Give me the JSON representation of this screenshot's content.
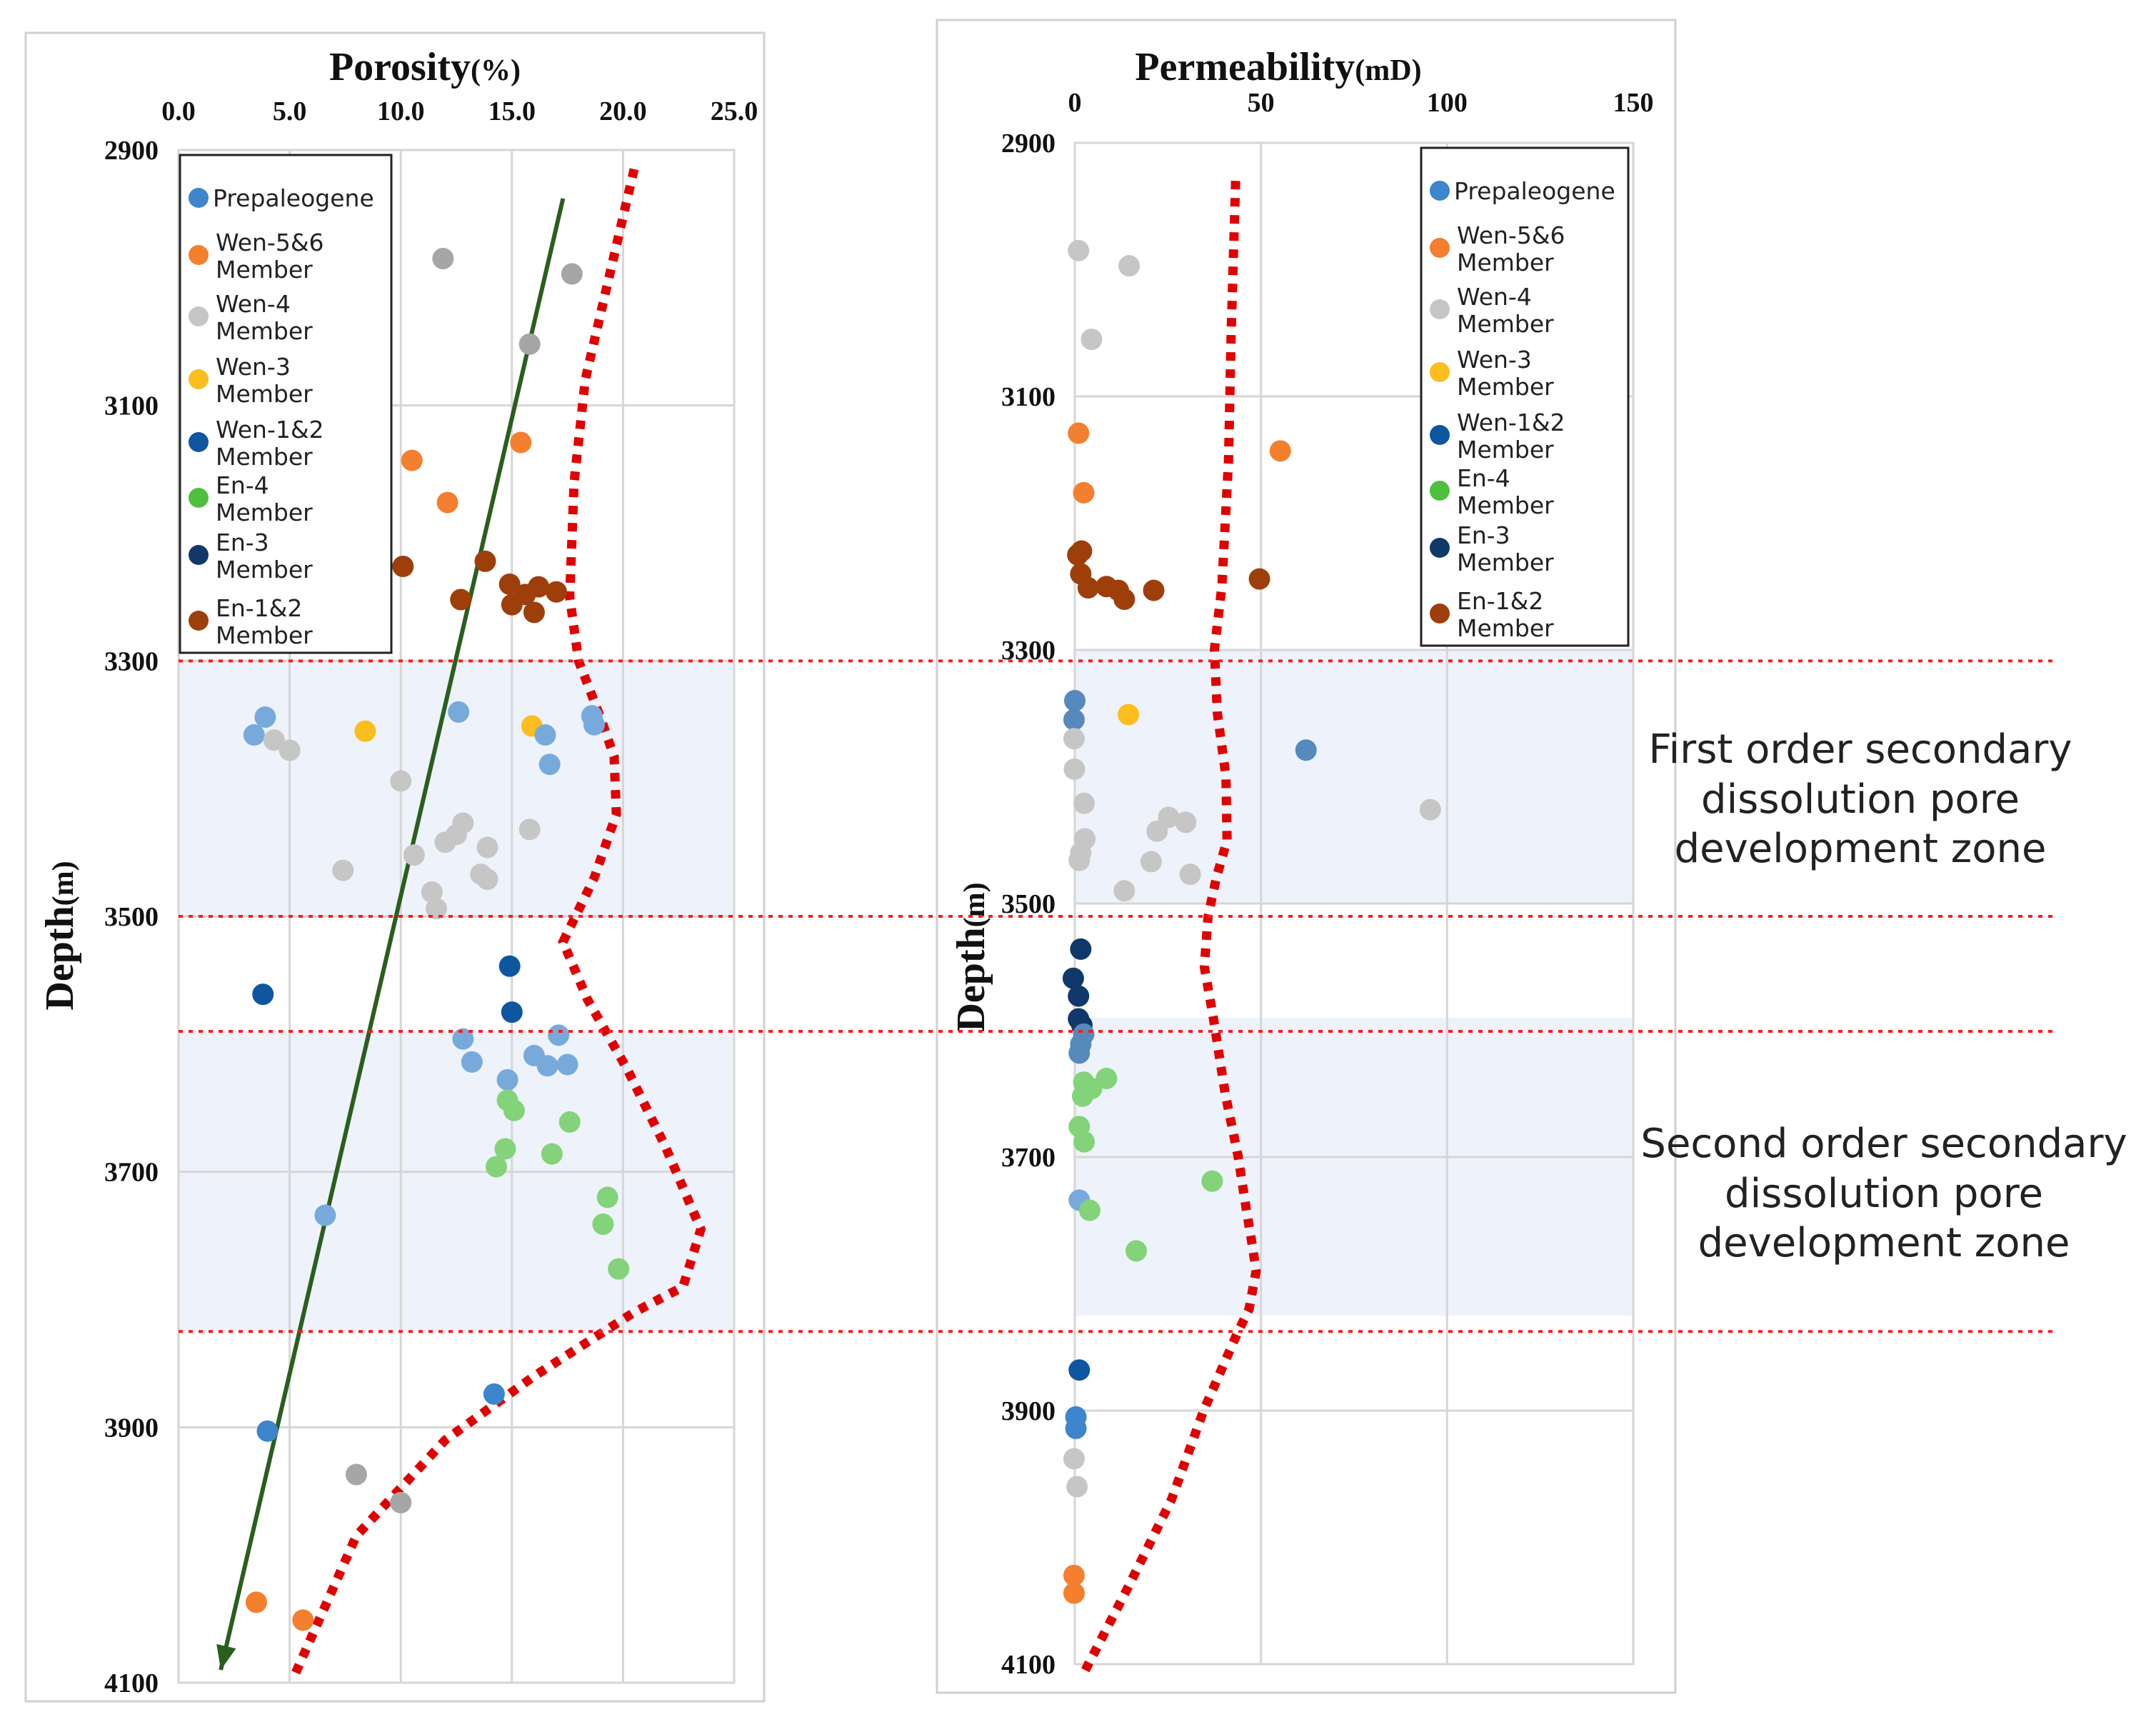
{
  "colors": {
    "Prepaleogene": "#3d85cc",
    "Wen-5&6 Member": "#f37f2f",
    "Wen-4 Member": "#c6c6c6",
    "Wen-3 Member": "#fcbd1f",
    "Wen-1&2 Member": "#0f56a1",
    "En-4 Member": "#4fbf3f",
    "En-3 Member": "#10386a",
    "En-1&2 Member": "#9e3f0b",
    "trend_dotted": "#e00000",
    "trend_arrow": "#2a5e1e",
    "zone_line": "#ff1a1a",
    "zone_fill": "#dde6f6"
  },
  "zones": {
    "first": {
      "top_depth": 3300,
      "bottom_depth": 3500,
      "lines": [
        "First order secondary",
        "dissolution pore",
        "development zone"
      ]
    },
    "second": {
      "top_depth": 3590,
      "bottom_depth": 3825,
      "lines": [
        "Second order secondary",
        "dissolution pore",
        "development zone"
      ]
    }
  },
  "chart_data": [
    {
      "type": "scatter",
      "title": "Porosity",
      "title_unit": "(%)",
      "xlabel": "Porosity (%)",
      "ylabel_main": "Depth",
      "ylabel_unit": "(m)",
      "xlim": [
        0,
        25
      ],
      "xticks": [
        "0.0",
        "5.0",
        "10.0",
        "15.0",
        "20.0",
        "25.0"
      ],
      "xtick_values": [
        0,
        5,
        10,
        15,
        20,
        25
      ],
      "ylim": [
        2900,
        4100
      ],
      "yticks": [
        "2900",
        "3100",
        "3300",
        "3500",
        "3700",
        "3900",
        "4100"
      ],
      "ytick_values": [
        2900,
        3100,
        3300,
        3500,
        3700,
        3900,
        4100
      ],
      "legend": [
        "Prepaleogene",
        "Wen-5&6 Member",
        "Wen-4 Member",
        "Wen-3 Member",
        "Wen-1&2 Member",
        "En-4 Member",
        "En-3 Member",
        "En-1&2 Member"
      ],
      "points": [
        {
          "x": 11.9,
          "y": 2985,
          "g": "Wen-4 Member",
          "dark": true
        },
        {
          "x": 17.7,
          "y": 2997,
          "g": "Wen-4 Member",
          "dark": true
        },
        {
          "x": 15.8,
          "y": 3052,
          "g": "Wen-4 Member",
          "dark": true
        },
        {
          "x": 10.5,
          "y": 3143,
          "g": "Wen-5&6 Member"
        },
        {
          "x": 15.4,
          "y": 3129,
          "g": "Wen-5&6 Member"
        },
        {
          "x": 12.1,
          "y": 3176,
          "g": "Wen-5&6 Member"
        },
        {
          "x": 10.1,
          "y": 3226,
          "g": "En-1&2 Member"
        },
        {
          "x": 13.8,
          "y": 3222,
          "g": "En-1&2 Member"
        },
        {
          "x": 12.7,
          "y": 3252,
          "g": "En-1&2 Member"
        },
        {
          "x": 14.9,
          "y": 3240,
          "g": "En-1&2 Member"
        },
        {
          "x": 15.6,
          "y": 3248,
          "g": "En-1&2 Member"
        },
        {
          "x": 16.2,
          "y": 3242,
          "g": "En-1&2 Member"
        },
        {
          "x": 17.0,
          "y": 3246,
          "g": "En-1&2 Member"
        },
        {
          "x": 15.0,
          "y": 3256,
          "g": "En-1&2 Member"
        },
        {
          "x": 16.0,
          "y": 3262,
          "g": "En-1&2 Member"
        },
        {
          "x": 3.9,
          "y": 3344,
          "g": "Prepaleogene",
          "muted": true
        },
        {
          "x": 3.4,
          "y": 3358,
          "g": "Prepaleogene",
          "muted": true
        },
        {
          "x": 4.3,
          "y": 3362,
          "g": "Wen-4 Member"
        },
        {
          "x": 5.0,
          "y": 3370,
          "g": "Wen-4 Member"
        },
        {
          "x": 8.4,
          "y": 3355,
          "g": "Wen-3 Member"
        },
        {
          "x": 12.6,
          "y": 3340,
          "g": "Prepaleogene",
          "muted": true
        },
        {
          "x": 15.9,
          "y": 3351,
          "g": "Wen-3 Member"
        },
        {
          "x": 16.5,
          "y": 3358,
          "g": "Prepaleogene",
          "muted": true
        },
        {
          "x": 18.6,
          "y": 3343,
          "g": "Prepaleogene",
          "muted": true
        },
        {
          "x": 18.7,
          "y": 3350,
          "g": "Prepaleogene",
          "muted": true
        },
        {
          "x": 16.7,
          "y": 3381,
          "g": "Prepaleogene",
          "muted": true
        },
        {
          "x": 10.0,
          "y": 3394,
          "g": "Wen-4 Member"
        },
        {
          "x": 12.8,
          "y": 3427,
          "g": "Wen-4 Member"
        },
        {
          "x": 12.5,
          "y": 3436,
          "g": "Wen-4 Member"
        },
        {
          "x": 12.0,
          "y": 3442,
          "g": "Wen-4 Member"
        },
        {
          "x": 15.8,
          "y": 3432,
          "g": "Wen-4 Member"
        },
        {
          "x": 13.9,
          "y": 3446,
          "g": "Wen-4 Member"
        },
        {
          "x": 10.6,
          "y": 3452,
          "g": "Wen-4 Member"
        },
        {
          "x": 7.4,
          "y": 3464,
          "g": "Wen-4 Member"
        },
        {
          "x": 13.6,
          "y": 3467,
          "g": "Wen-4 Member"
        },
        {
          "x": 13.9,
          "y": 3471,
          "g": "Wen-4 Member"
        },
        {
          "x": 11.4,
          "y": 3481,
          "g": "Wen-4 Member"
        },
        {
          "x": 11.6,
          "y": 3494,
          "g": "Wen-4 Member"
        },
        {
          "x": 3.8,
          "y": 3561,
          "g": "Wen-1&2 Member"
        },
        {
          "x": 14.9,
          "y": 3539,
          "g": "Wen-1&2 Member"
        },
        {
          "x": 15.0,
          "y": 3575,
          "g": "Wen-1&2 Member"
        },
        {
          "x": 12.8,
          "y": 3596,
          "g": "Prepaleogene",
          "muted": true
        },
        {
          "x": 17.1,
          "y": 3593,
          "g": "Prepaleogene",
          "muted": true
        },
        {
          "x": 13.2,
          "y": 3614,
          "g": "Prepaleogene",
          "muted": true
        },
        {
          "x": 16.0,
          "y": 3609,
          "g": "Prepaleogene",
          "muted": true
        },
        {
          "x": 16.6,
          "y": 3617,
          "g": "Prepaleogene",
          "muted": true
        },
        {
          "x": 17.5,
          "y": 3616,
          "g": "Prepaleogene",
          "muted": true
        },
        {
          "x": 14.8,
          "y": 3628,
          "g": "Prepaleogene",
          "muted": true
        },
        {
          "x": 14.8,
          "y": 3644,
          "g": "En-4 Member",
          "muted": true
        },
        {
          "x": 15.1,
          "y": 3652,
          "g": "En-4 Member",
          "muted": true
        },
        {
          "x": 17.6,
          "y": 3661,
          "g": "En-4 Member",
          "muted": true
        },
        {
          "x": 14.7,
          "y": 3682,
          "g": "En-4 Member",
          "muted": true
        },
        {
          "x": 16.8,
          "y": 3686,
          "g": "En-4 Member",
          "muted": true
        },
        {
          "x": 14.3,
          "y": 3696,
          "g": "En-4 Member",
          "muted": true
        },
        {
          "x": 19.3,
          "y": 3720,
          "g": "En-4 Member",
          "muted": true
        },
        {
          "x": 6.6,
          "y": 3734,
          "g": "Prepaleogene",
          "muted": true
        },
        {
          "x": 19.1,
          "y": 3741,
          "g": "En-4 Member",
          "muted": true
        },
        {
          "x": 19.8,
          "y": 3776,
          "g": "En-4 Member",
          "muted": true
        },
        {
          "x": 14.2,
          "y": 3874,
          "g": "Prepaleogene"
        },
        {
          "x": 4.0,
          "y": 3903,
          "g": "Prepaleogene"
        },
        {
          "x": 8.0,
          "y": 3937,
          "g": "Wen-4 Member",
          "dark": true
        },
        {
          "x": 10.0,
          "y": 3959,
          "g": "Wen-4 Member",
          "dark": true
        },
        {
          "x": 3.5,
          "y": 4037,
          "g": "Wen-5&6 Member"
        },
        {
          "x": 5.6,
          "y": 4051,
          "g": "Wen-5&6 Member"
        }
      ],
      "trend_dotted": [
        [
          20.5,
          2915
        ],
        [
          19.5,
          2990
        ],
        [
          18.3,
          3080
        ],
        [
          17.8,
          3160
        ],
        [
          17.6,
          3250
        ],
        [
          18.0,
          3300
        ],
        [
          19.0,
          3345
        ],
        [
          19.6,
          3375
        ],
        [
          19.7,
          3420
        ],
        [
          18.7,
          3470
        ],
        [
          17.3,
          3520
        ],
        [
          18.4,
          3565
        ],
        [
          20.2,
          3620
        ],
        [
          21.9,
          3680
        ],
        [
          23.5,
          3745
        ],
        [
          22.7,
          3790
        ],
        [
          20.5,
          3810
        ],
        [
          16.0,
          3860
        ],
        [
          12.0,
          3910
        ],
        [
          8.0,
          3985
        ],
        [
          5.2,
          4095
        ]
      ],
      "trend_arrow": [
        [
          17.3,
          2938
        ],
        [
          1.9,
          4090
        ]
      ]
    },
    {
      "type": "scatter",
      "title": "Permeability",
      "title_unit": "(mD)",
      "xlabel": "Permeability (mD)",
      "ylabel_main": "Depth",
      "ylabel_unit": "(m)",
      "xlim": [
        0,
        150
      ],
      "xticks": [
        "0",
        "50",
        "100",
        "150"
      ],
      "xtick_values": [
        0,
        50,
        100,
        150
      ],
      "ylim": [
        2900,
        4100
      ],
      "yticks": [
        "2900",
        "3100",
        "3300",
        "3500",
        "3700",
        "3900",
        "4100"
      ],
      "ytick_values": [
        2900,
        3100,
        3300,
        3500,
        3700,
        3900,
        4100
      ],
      "legend": [
        "Prepaleogene",
        "Wen-5&6 Member",
        "Wen-4 Member",
        "Wen-3 Member",
        "Wen-1&2 Member",
        "En-4 Member",
        "En-3 Member",
        "En-1&2 Member"
      ],
      "points": [
        {
          "x": 1.0,
          "y": 2985,
          "g": "Wen-4 Member"
        },
        {
          "x": 14.6,
          "y": 2997,
          "g": "Wen-4 Member"
        },
        {
          "x": 4.5,
          "y": 3055,
          "g": "Wen-4 Member"
        },
        {
          "x": 1.0,
          "y": 3129,
          "g": "Wen-5&6 Member"
        },
        {
          "x": 55.2,
          "y": 3143,
          "g": "Wen-5&6 Member"
        },
        {
          "x": 2.4,
          "y": 3176,
          "g": "Wen-5&6 Member"
        },
        {
          "x": 0.8,
          "y": 3225,
          "g": "En-1&2 Member"
        },
        {
          "x": 1.8,
          "y": 3222,
          "g": "En-1&2 Member"
        },
        {
          "x": 1.6,
          "y": 3240,
          "g": "En-1&2 Member"
        },
        {
          "x": 3.6,
          "y": 3251,
          "g": "En-1&2 Member"
        },
        {
          "x": 8.5,
          "y": 3250,
          "g": "En-1&2 Member"
        },
        {
          "x": 11.7,
          "y": 3253,
          "g": "En-1&2 Member"
        },
        {
          "x": 13.3,
          "y": 3260,
          "g": "En-1&2 Member"
        },
        {
          "x": 21.2,
          "y": 3253,
          "g": "En-1&2 Member"
        },
        {
          "x": 49.6,
          "y": 3244,
          "g": "En-1&2 Member"
        },
        {
          "x": 0.0,
          "y": 3340,
          "g": "Wen-1&2 Member",
          "muted": true
        },
        {
          "x": -0.2,
          "y": 3355,
          "g": "Wen-1&2 Member",
          "muted": true
        },
        {
          "x": 14.4,
          "y": 3351,
          "g": "Wen-3 Member"
        },
        {
          "x": -0.2,
          "y": 3370,
          "g": "Wen-4 Member"
        },
        {
          "x": 62.1,
          "y": 3379,
          "g": "Wen-1&2 Member",
          "muted": true
        },
        {
          "x": -0.1,
          "y": 3394,
          "g": "Wen-4 Member"
        },
        {
          "x": 2.5,
          "y": 3421,
          "g": "Wen-4 Member"
        },
        {
          "x": 95.5,
          "y": 3426,
          "g": "Wen-4 Member"
        },
        {
          "x": 25.2,
          "y": 3432,
          "g": "Wen-4 Member"
        },
        {
          "x": 29.8,
          "y": 3436,
          "g": "Wen-4 Member"
        },
        {
          "x": 22.1,
          "y": 3443,
          "g": "Wen-4 Member"
        },
        {
          "x": 2.7,
          "y": 3449,
          "g": "Wen-4 Member"
        },
        {
          "x": 1.6,
          "y": 3460,
          "g": "Wen-4 Member"
        },
        {
          "x": 20.5,
          "y": 3467,
          "g": "Wen-4 Member"
        },
        {
          "x": 1.2,
          "y": 3466,
          "g": "Wen-4 Member"
        },
        {
          "x": 31.0,
          "y": 3477,
          "g": "Wen-4 Member"
        },
        {
          "x": 13.3,
          "y": 3490,
          "g": "Wen-4 Member"
        },
        {
          "x": 1.6,
          "y": 3536,
          "g": "En-3 Member"
        },
        {
          "x": -0.4,
          "y": 3559,
          "g": "En-3 Member"
        },
        {
          "x": 1.0,
          "y": 3573,
          "g": "En-3 Member"
        },
        {
          "x": 1.0,
          "y": 3591,
          "g": "En-3 Member"
        },
        {
          "x": 1.9,
          "y": 3596,
          "g": "En-3 Member"
        },
        {
          "x": 2.4,
          "y": 3603,
          "g": "Wen-1&2 Member",
          "muted": true
        },
        {
          "x": 1.6,
          "y": 3611,
          "g": "Wen-1&2 Member",
          "muted": true
        },
        {
          "x": 1.2,
          "y": 3618,
          "g": "Wen-1&2 Member",
          "muted": true
        },
        {
          "x": 2.4,
          "y": 3641,
          "g": "En-4 Member",
          "muted": true
        },
        {
          "x": 8.5,
          "y": 3638,
          "g": "En-4 Member",
          "muted": true
        },
        {
          "x": 2.1,
          "y": 3652,
          "g": "En-4 Member",
          "muted": true
        },
        {
          "x": 4.5,
          "y": 3646,
          "g": "En-4 Member",
          "muted": true
        },
        {
          "x": 1.2,
          "y": 3676,
          "g": "En-4 Member",
          "muted": true
        },
        {
          "x": 2.5,
          "y": 3688,
          "g": "En-4 Member",
          "muted": true
        },
        {
          "x": 36.9,
          "y": 3719,
          "g": "En-4 Member",
          "muted": true
        },
        {
          "x": 1.2,
          "y": 3734,
          "g": "Prepaleogene",
          "muted": true
        },
        {
          "x": 4.0,
          "y": 3742,
          "g": "En-4 Member",
          "muted": true
        },
        {
          "x": 16.5,
          "y": 3774,
          "g": "En-4 Member",
          "muted": true
        },
        {
          "x": 1.2,
          "y": 3868,
          "g": "Wen-1&2 Member"
        },
        {
          "x": 0.3,
          "y": 3905,
          "g": "Prepaleogene"
        },
        {
          "x": 0.3,
          "y": 3914,
          "g": "Prepaleogene"
        },
        {
          "x": -0.2,
          "y": 3938,
          "g": "Wen-4 Member"
        },
        {
          "x": 0.6,
          "y": 3960,
          "g": "Wen-4 Member"
        },
        {
          "x": -0.2,
          "y": 4030,
          "g": "Wen-5&6 Member"
        },
        {
          "x": -0.2,
          "y": 4044,
          "g": "Wen-5&6 Member"
        }
      ],
      "trend_dotted": [
        [
          43.2,
          2930
        ],
        [
          42.0,
          3050
        ],
        [
          41.3,
          3150
        ],
        [
          39.5,
          3250
        ],
        [
          37.5,
          3300
        ],
        [
          38.3,
          3350
        ],
        [
          40.6,
          3400
        ],
        [
          40.9,
          3450
        ],
        [
          38.0,
          3480
        ],
        [
          35.8,
          3510
        ],
        [
          34.8,
          3550
        ],
        [
          37.2,
          3590
        ],
        [
          40.4,
          3650
        ],
        [
          43.9,
          3700
        ],
        [
          46.0,
          3740
        ],
        [
          47.7,
          3770
        ],
        [
          48.7,
          3790
        ],
        [
          46.8,
          3820
        ],
        [
          43.5,
          3840
        ],
        [
          34.6,
          3900
        ],
        [
          26.0,
          3970
        ],
        [
          14.2,
          4040
        ],
        [
          1.9,
          4110
        ]
      ]
    }
  ]
}
